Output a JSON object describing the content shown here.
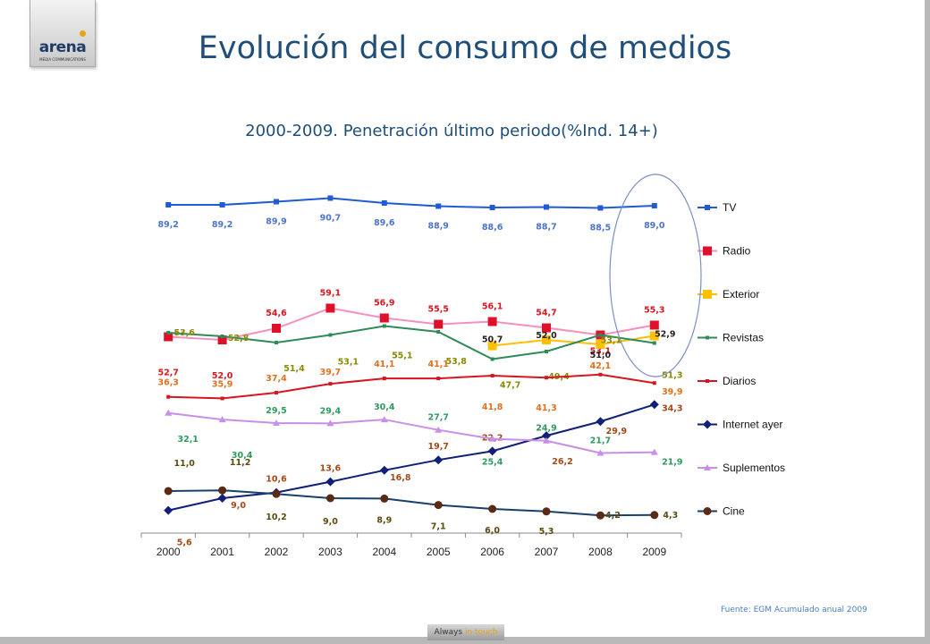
{
  "header": {
    "logo_text": "arena",
    "logo_sub": "MEDIA COMMUNICATIONS",
    "title": "Evolución del consumo de medios"
  },
  "footer": {
    "source": "Fuente: EGM Acumulado anual 2009",
    "badge_prefix": "Always",
    "badge_highlight": "in touch"
  },
  "chart_data": {
    "type": "line",
    "title": "2000-2009. Penetración último periodo(%Ind. 14+)",
    "xlabel": "",
    "ylabel": "",
    "categories": [
      "2000",
      "2001",
      "2002",
      "2003",
      "2004",
      "2005",
      "2006",
      "2007",
      "2008",
      "2009"
    ],
    "legend_position": "right",
    "grid": false,
    "series": [
      {
        "name": "TV",
        "color": "#1f5bd6",
        "marker": "square",
        "values": [
          89.2,
          89.2,
          89.9,
          90.7,
          89.6,
          88.9,
          88.6,
          88.7,
          88.5,
          89.0
        ],
        "labels": [
          "89,2",
          "89,2",
          "89,9",
          "90,7",
          "89,6",
          "88,9",
          "88,6",
          "88,7",
          "88,5",
          "89,0"
        ],
        "label_color": "#4c74c9"
      },
      {
        "name": "Radio",
        "color": "#f48fc0",
        "marker": "bigsquare",
        "marker_color": "#e0102a",
        "values": [
          52.7,
          52.0,
          54.6,
          59.1,
          56.9,
          55.5,
          56.1,
          54.7,
          53.1,
          55.3
        ],
        "labels": [
          "52,7",
          "52,0",
          "54,6",
          "59,1",
          "56,9",
          "55,5",
          "56,1",
          "54,7",
          "53,1",
          "55,3"
        ],
        "label_color": "#d9161f"
      },
      {
        "name": "Exterior",
        "color": "#ffc000",
        "marker": "bigsquare",
        "values": [
          null,
          null,
          null,
          null,
          null,
          null,
          50.7,
          52.0,
          51.0,
          52.9
        ],
        "labels": [
          "",
          "",
          "",
          "",
          "",
          "",
          "50,7",
          "52,0",
          "51,0",
          "52,9"
        ],
        "label_color": "#222222"
      },
      {
        "name": "Revistas",
        "color": "#2e8b57",
        "marker": "small",
        "values": [
          53.6,
          52.8,
          51.4,
          53.1,
          55.1,
          53.8,
          47.7,
          49.4,
          53.1,
          51.3
        ],
        "labels": [
          "53,6",
          "52,8",
          "51,4",
          "53,1",
          "55,1",
          "53,8",
          "47,7",
          "49,4",
          "53,1",
          "51,3"
        ],
        "label_color": "#8a8a00"
      },
      {
        "name": "Diarios",
        "color": "#d6161f",
        "marker": "small",
        "values": [
          36.3,
          35.9,
          37.4,
          39.7,
          41.1,
          41.1,
          41.8,
          41.3,
          42.1,
          39.9
        ],
        "labels": [
          "36,3",
          "35,9",
          "37,4",
          "39,7",
          "41,1",
          "41,1",
          "41,8",
          "41,3",
          "42,1",
          "39,9"
        ],
        "label_color": "#e07020"
      },
      {
        "name": "Internet ayer",
        "color": "#0f1f7a",
        "marker": "diamond",
        "values": [
          5.6,
          9.0,
          10.6,
          13.6,
          16.8,
          19.7,
          22.2,
          26.2,
          29.9,
          34.3
        ],
        "labels": [
          "5,6",
          "9,0",
          "10,6",
          "13,6",
          "16,8",
          "19,7",
          "22,2",
          "26,2",
          "29,9",
          "34,3"
        ],
        "label_color": "#a14a18"
      },
      {
        "name": "Suplementos",
        "color": "#c98ee8",
        "marker": "triangle",
        "values": [
          32.1,
          30.4,
          29.5,
          29.4,
          30.4,
          27.7,
          25.4,
          24.9,
          21.7,
          21.9
        ],
        "labels": [
          "32,1",
          "30,4",
          "29,5",
          "29,4",
          "30,4",
          "27,7",
          "25,4",
          "24,9",
          "21,7",
          "21,9"
        ],
        "label_color": "#2e9a5e"
      },
      {
        "name": "Cine",
        "color": "#17406b",
        "marker": "circle",
        "marker_color": "#5a2a14",
        "values": [
          11.0,
          11.2,
          10.2,
          9.0,
          8.9,
          7.1,
          6.0,
          5.3,
          4.2,
          4.3
        ],
        "labels": [
          "11,0",
          "11,2",
          "10,2",
          "9,0",
          "8,9",
          "7,1",
          "6,0",
          "5,3",
          "4,2",
          "4,3"
        ],
        "label_color": "#5a4a10"
      }
    ]
  }
}
